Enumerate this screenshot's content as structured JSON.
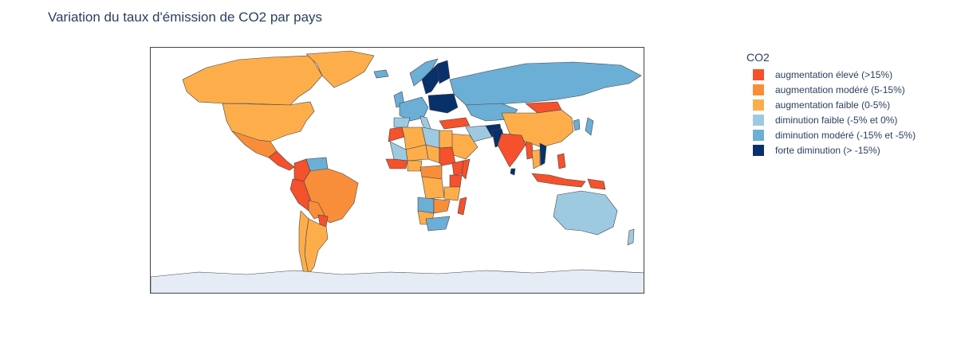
{
  "title": "Variation du taux d'émission de CO2 par pays",
  "legend": {
    "title": "CO2",
    "items": [
      {
        "label": "augmentation élevé (>15%)",
        "color": "#f4512c"
      },
      {
        "label": "augmentation modéré (5-15%)",
        "color": "#f98e3a"
      },
      {
        "label": "augmentation faible (0-5%)",
        "color": "#fdae4b"
      },
      {
        "label": "diminution faible (-5% et 0%)",
        "color": "#9ecae1"
      },
      {
        "label": "diminution modéré (-15% et -5%)",
        "color": "#6baed6"
      },
      {
        "label": "forte diminution (> -15%)",
        "color": "#08306b"
      }
    ]
  },
  "colors": {
    "land_background": "#e5ecf6",
    "border": "#444444"
  },
  "map_data": {
    "type": "choropleth",
    "regions": [
      {
        "name": "Canada",
        "category": 2
      },
      {
        "name": "United States",
        "category": 2
      },
      {
        "name": "Greenland",
        "category": 2
      },
      {
        "name": "Mexico",
        "category": 1
      },
      {
        "name": "Central America",
        "category": 0
      },
      {
        "name": "Colombia",
        "category": 0
      },
      {
        "name": "Venezuela",
        "category": 4
      },
      {
        "name": "Peru",
        "category": 0
      },
      {
        "name": "Brazil",
        "category": 1
      },
      {
        "name": "Bolivia",
        "category": 1
      },
      {
        "name": "Paraguay",
        "category": 0
      },
      {
        "name": "Argentina",
        "category": 2
      },
      {
        "name": "Chile",
        "category": 2
      },
      {
        "name": "Iceland",
        "category": 4
      },
      {
        "name": "Norway",
        "category": 4
      },
      {
        "name": "Sweden",
        "category": 5
      },
      {
        "name": "Finland",
        "category": 5
      },
      {
        "name": "United Kingdom",
        "category": 4
      },
      {
        "name": "Western Europe",
        "category": 4
      },
      {
        "name": "Spain",
        "category": 3
      },
      {
        "name": "Italy",
        "category": 3
      },
      {
        "name": "Eastern Europe",
        "category": 5
      },
      {
        "name": "Turkey",
        "category": 0
      },
      {
        "name": "Russia",
        "category": 4
      },
      {
        "name": "Kazakhstan",
        "category": 4
      },
      {
        "name": "Mongolia",
        "category": 0
      },
      {
        "name": "China",
        "category": 2
      },
      {
        "name": "Japan",
        "category": 4
      },
      {
        "name": "Korea",
        "category": 4
      },
      {
        "name": "Iran",
        "category": 3
      },
      {
        "name": "Afghanistan",
        "category": 5
      },
      {
        "name": "Pakistan",
        "category": 5
      },
      {
        "name": "India",
        "category": 0
      },
      {
        "name": "Sri Lanka",
        "category": 5
      },
      {
        "name": "Saudi Arabia",
        "category": 2
      },
      {
        "name": "Myanmar",
        "category": 0
      },
      {
        "name": "Thailand",
        "category": 2
      },
      {
        "name": "Vietnam",
        "category": 5
      },
      {
        "name": "Indonesia",
        "category": 0
      },
      {
        "name": "Papua New Guinea",
        "category": 0
      },
      {
        "name": "Philippines",
        "category": 0
      },
      {
        "name": "Australia",
        "category": 3
      },
      {
        "name": "New Zealand",
        "category": 3
      },
      {
        "name": "Morocco",
        "category": 0
      },
      {
        "name": "Algeria",
        "category": 2
      },
      {
        "name": "Libya",
        "category": 3
      },
      {
        "name": "Egypt",
        "category": 2
      },
      {
        "name": "Mali",
        "category": 3
      },
      {
        "name": "Niger",
        "category": 2
      },
      {
        "name": "Chad",
        "category": 2
      },
      {
        "name": "Sudan",
        "category": 0
      },
      {
        "name": "Ethiopia",
        "category": 0
      },
      {
        "name": "Somalia",
        "category": 0
      },
      {
        "name": "West Africa",
        "category": 0
      },
      {
        "name": "Nigeria",
        "category": 2
      },
      {
        "name": "Central Africa",
        "category": 1
      },
      {
        "name": "DR Congo",
        "category": 2
      },
      {
        "name": "Kenya",
        "category": 0
      },
      {
        "name": "Tanzania",
        "category": 2
      },
      {
        "name": "Angola",
        "category": 4
      },
      {
        "name": "Zambia",
        "category": 1
      },
      {
        "name": "Namibia",
        "category": 2
      },
      {
        "name": "South Africa",
        "category": 4
      },
      {
        "name": "Madagascar",
        "category": 0
      },
      {
        "name": "Antarctica",
        "category": null
      }
    ]
  }
}
